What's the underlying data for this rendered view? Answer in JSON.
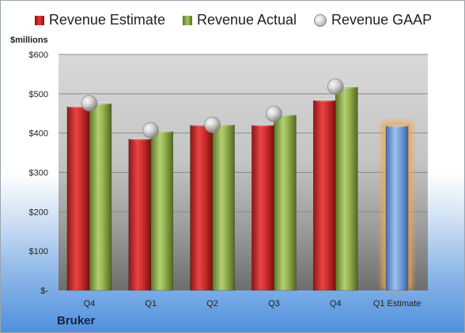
{
  "legend": {
    "estimate": "Revenue Estimate",
    "actual": "Revenue Actual",
    "gaap": "Revenue GAAP"
  },
  "unit_label": "$millions",
  "company": "Bruker",
  "colors": {
    "estimate": "#d42b2b",
    "actual": "#8fae4c",
    "forecast": "#6f9bd8",
    "forecast_glow": "#f4a64a",
    "gaap": "#c8c8c8"
  },
  "chart_data": {
    "type": "bar",
    "categories": [
      "Q4",
      "Q1",
      "Q2",
      "Q3",
      "Q4",
      "Q1 Estimate"
    ],
    "series": [
      {
        "name": "Revenue Estimate",
        "values": [
          467,
          385,
          420,
          420,
          483,
          null
        ]
      },
      {
        "name": "Revenue Actual",
        "values": [
          475,
          404,
          421,
          446,
          517,
          null
        ]
      },
      {
        "name": "Revenue GAAP",
        "values": [
          476,
          407,
          421,
          449,
          518,
          null
        ]
      },
      {
        "name": "Revenue Estimate (forecast)",
        "values": [
          null,
          null,
          null,
          null,
          null,
          418
        ]
      }
    ],
    "yticks": [
      "$-",
      "$100",
      "$200",
      "$300",
      "$400",
      "$500",
      "$600"
    ],
    "ylim": [
      0,
      600
    ],
    "legend_position": "top",
    "grid": true
  }
}
